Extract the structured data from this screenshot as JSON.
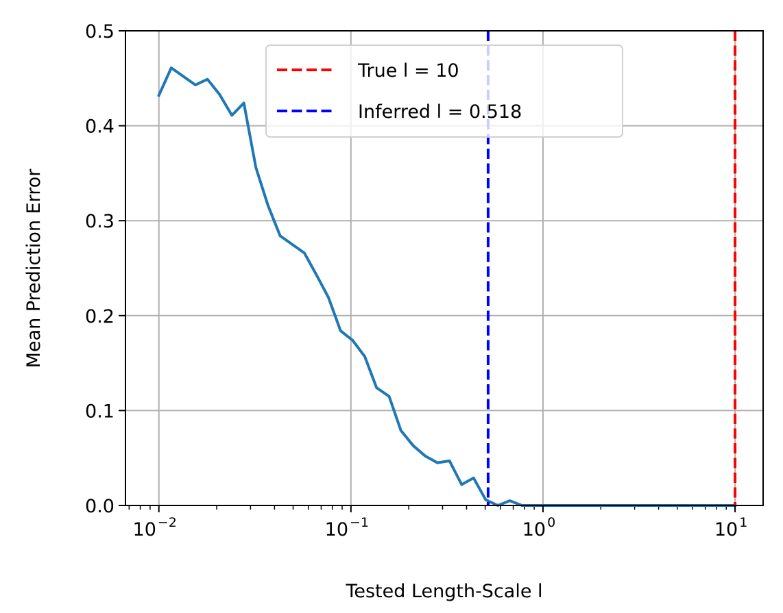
{
  "chart_data": {
    "type": "line",
    "xlabel": "Tested Length-Scale l",
    "ylabel": "Mean Prediction Error",
    "xscale": "log",
    "xlim": [
      0.0067,
      14
    ],
    "ylim": [
      0,
      0.5
    ],
    "grid": true,
    "legend_placement": "upper-center",
    "x_ticks": [
      {
        "base": "10",
        "exp": "−2"
      },
      {
        "base": "10",
        "exp": "−1"
      },
      {
        "base": "10",
        "exp": "0"
      },
      {
        "base": "10",
        "exp": "1"
      }
    ],
    "y_ticks": [
      "0.0",
      "0.1",
      "0.2",
      "0.3",
      "0.4",
      "0.5"
    ],
    "series": [
      {
        "color": "#1f77b4",
        "x": [
          0.01,
          0.0116,
          0.0134,
          0.0155,
          0.0179,
          0.0207,
          0.024,
          0.0277,
          0.032,
          0.037,
          0.0428,
          0.0495,
          0.0572,
          0.0661,
          0.0764,
          0.0883,
          0.102,
          0.118,
          0.136,
          0.158,
          0.182,
          0.211,
          0.244,
          0.282,
          0.326,
          0.377,
          0.435,
          0.503,
          0.582,
          0.672,
          0.777,
          0.898,
          1.04,
          1.2,
          1.39,
          1.6,
          1.85,
          2.14,
          2.47,
          2.86,
          3.3,
          3.82,
          4.42,
          5.1,
          5.9,
          6.82,
          7.88,
          9.1,
          10.0
        ],
        "values": [
          0.432,
          0.461,
          0.452,
          0.443,
          0.449,
          0.433,
          0.411,
          0.424,
          0.356,
          0.316,
          0.284,
          0.275,
          0.266,
          0.243,
          0.219,
          0.184,
          0.174,
          0.157,
          0.124,
          0.115,
          0.079,
          0.063,
          0.052,
          0.045,
          0.047,
          0.022,
          0.029,
          0.006,
          0.0,
          0.005,
          0.0,
          0.0,
          0.0,
          0.0,
          0.0,
          0.0,
          0.0,
          0.0,
          0.0,
          0.0,
          0.0,
          0.0,
          0.0,
          0.0,
          0.0,
          0.0,
          0.0,
          0.0,
          0.0
        ]
      }
    ],
    "vlines": [
      {
        "x": 10,
        "color": "#ff0000",
        "style": "dashed",
        "label": "True l = 10"
      },
      {
        "x": 0.518,
        "color": "#0000ff",
        "style": "dashed",
        "label": "Inferred l = 0.518"
      }
    ]
  }
}
